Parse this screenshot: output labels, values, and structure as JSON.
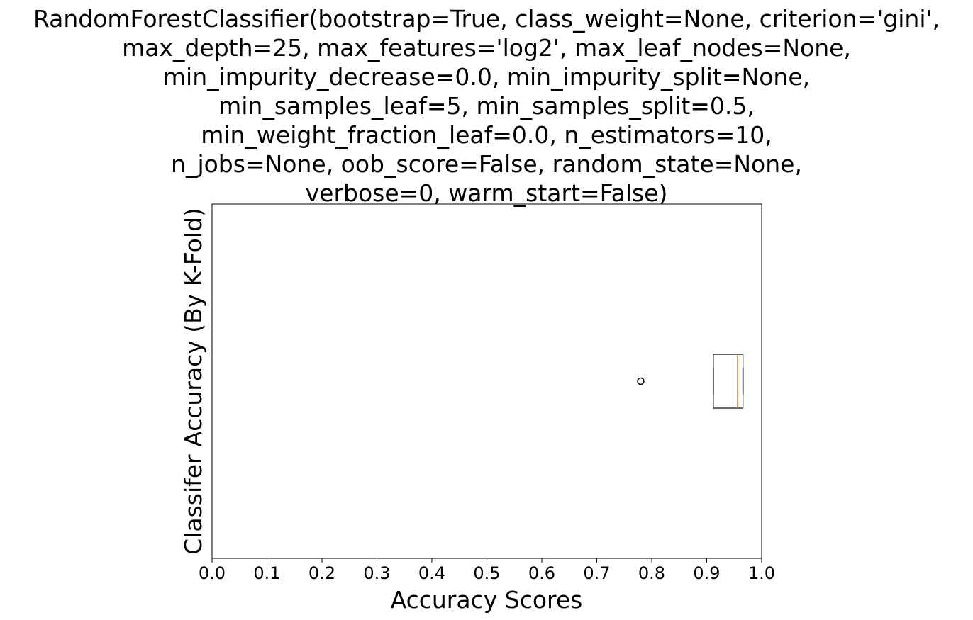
{
  "chart_data": {
    "type": "boxplot",
    "orientation": "horizontal",
    "title_lines": [
      "RandomForestClassifier(bootstrap=True, class_weight=None, criterion='gini',",
      "max_depth=25, max_features='log2', max_leaf_nodes=None,",
      "min_impurity_decrease=0.0, min_impurity_split=None,",
      "min_samples_leaf=5, min_samples_split=0.5,",
      "min_weight_fraction_leaf=0.0, n_estimators=10,",
      "n_jobs=None, oob_score=False, random_state=None,",
      "verbose=0, warm_start=False)"
    ],
    "xlabel": "Accuracy Scores",
    "ylabel": "Classifer Accuracy (By K-Fold)",
    "xlim": [
      0.0,
      1.0
    ],
    "xticks": [
      "0.0",
      "0.1",
      "0.2",
      "0.3",
      "0.4",
      "0.5",
      "0.6",
      "0.7",
      "0.8",
      "0.9",
      "1.0"
    ],
    "grid": false,
    "box": {
      "whisker_low": 0.912,
      "q1": 0.912,
      "median": 0.956,
      "q3": 0.966,
      "whisker_high": 0.966,
      "outliers": [
        0.78
      ]
    },
    "colors": {
      "box": "#000000",
      "median": "#ff7f0e",
      "outlier": "#000000"
    }
  }
}
